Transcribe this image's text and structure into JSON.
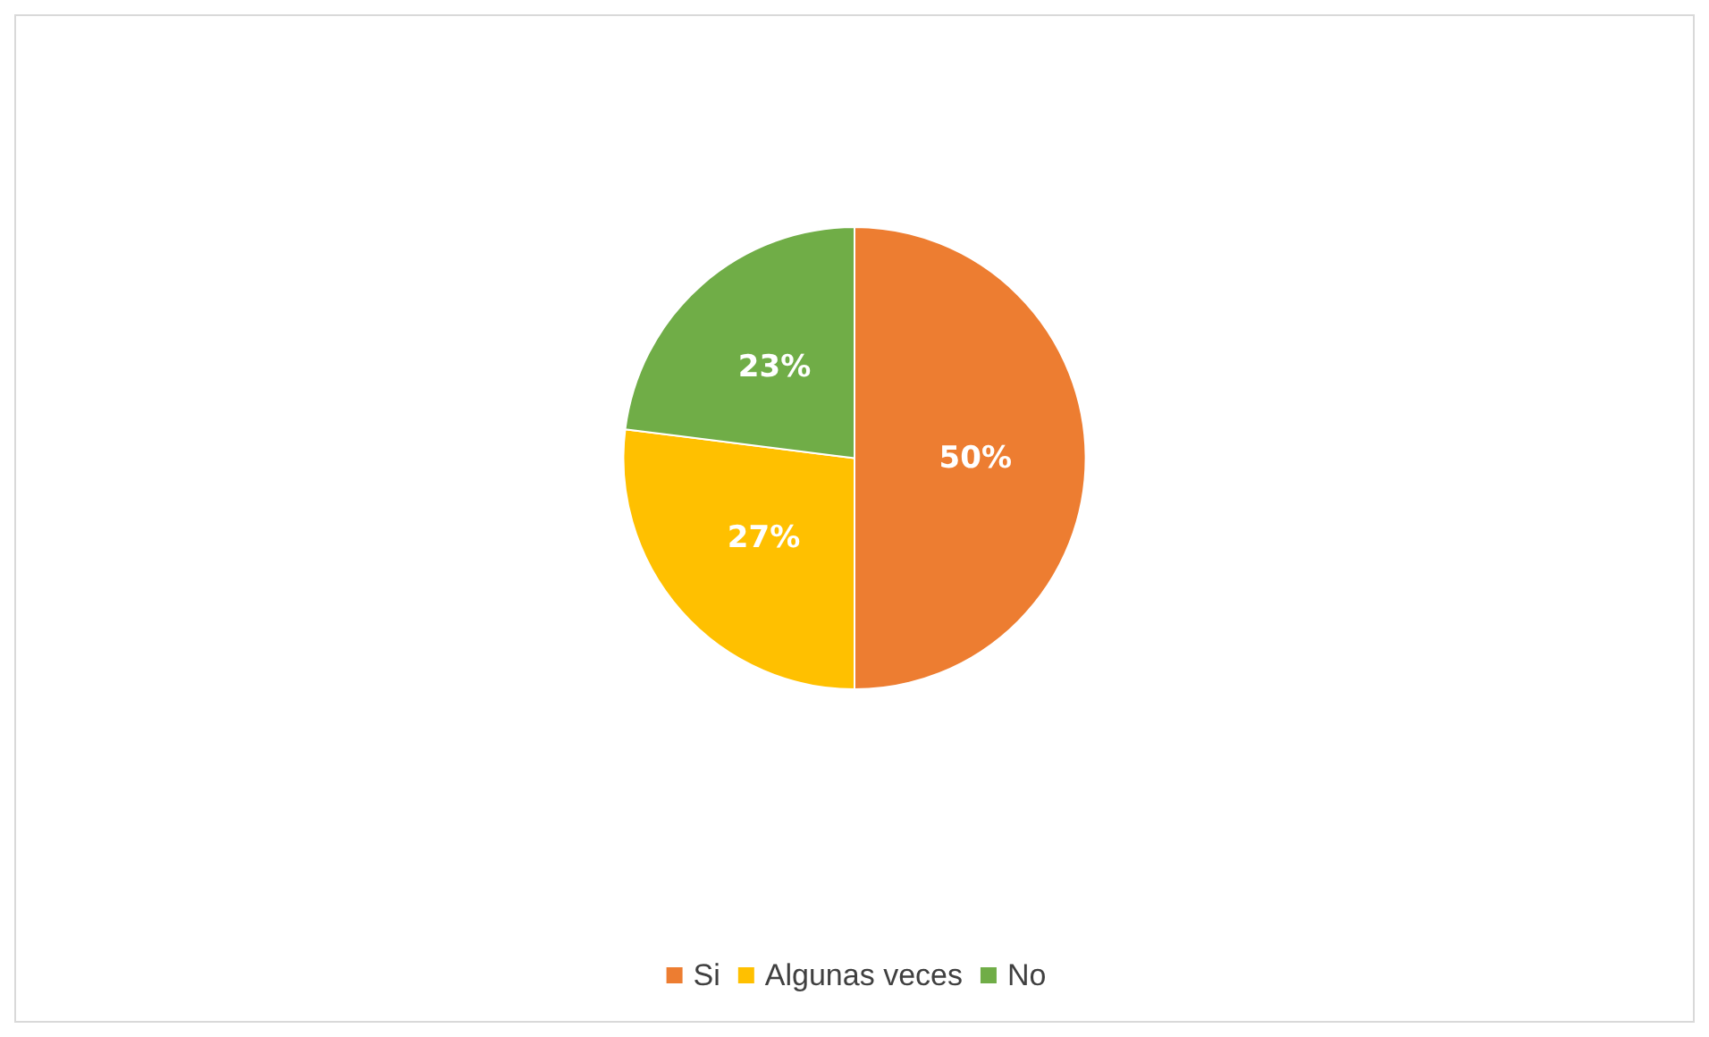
{
  "chart_data": {
    "type": "pie",
    "categories": [
      "Si",
      "Algunas veces",
      "No"
    ],
    "values": [
      50,
      27,
      23
    ],
    "value_labels": [
      "50%",
      "27%",
      "23%"
    ],
    "colors": [
      "#ed7d31",
      "#ffc000",
      "#70ad47"
    ],
    "legend": "bottom"
  }
}
